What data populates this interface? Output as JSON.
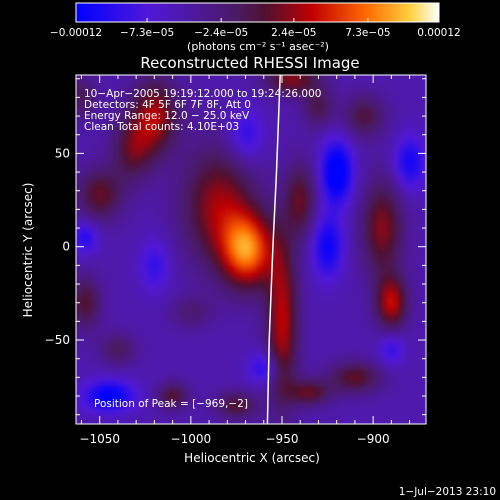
{
  "chart_data": {
    "type": "heatmap",
    "title": "Reconstructed RHESSI Image",
    "xlabel": "Heliocentric X (arcsec)",
    "ylabel": "Heliocentric Y (arcsec)",
    "xlim": [
      -1063,
      -871
    ],
    "ylim": [
      -95,
      92
    ],
    "x_ticks": [
      -1050,
      -1000,
      -950,
      -900
    ],
    "x_tick_labels": [
      "−1050",
      "−1000",
      "−950",
      "−900"
    ],
    "y_ticks": [
      -50,
      0,
      50
    ],
    "y_tick_labels": [
      "−50",
      "0",
      "50"
    ],
    "colorbar": {
      "label": "(photons cm⁻² s⁻¹ asec⁻²)",
      "range": [
        -0.00012,
        0.00012
      ],
      "ticks": [
        -0.00012,
        -7.3e-05,
        -2.4e-05,
        2.4e-05,
        7.3e-05,
        0.00012
      ],
      "tick_labels": [
        "−0.00012",
        "−7.3e−05",
        "−2.4e−05",
        "2.4e−05",
        "7.3e−05",
        "0.00012"
      ]
    },
    "info_lines": [
      "10−Apr−2005 19:19:12.000 to 19:24:26.000",
      "Detectors: 4F 5F 6F 7F 8F, Att 0",
      "Energy Range: 12.0 − 25.0 keV",
      "Clean     Total counts: 4.10E+03"
    ],
    "peak_text": "Position of Peak = [−969,−2]",
    "peak": {
      "x": -969,
      "y": -2
    },
    "limb_curve": [
      [
        -951,
        92
      ],
      [
        -953,
        40
      ],
      [
        -955,
        0
      ],
      [
        -957,
        -50
      ],
      [
        -958,
        -95
      ]
    ],
    "sources": [
      {
        "x": -969,
        "y": -2,
        "sx": 10,
        "sy": 14,
        "amp": 0.00012
      },
      {
        "x": -985,
        "y": 22,
        "sx": 14,
        "sy": 22,
        "amp": 7.5e-05
      },
      {
        "x": -1020,
        "y": 70,
        "sx": 9,
        "sy": 14,
        "amp": 8e-05
      },
      {
        "x": -1032,
        "y": 52,
        "sx": 8,
        "sy": 12,
        "amp": 5.5e-05
      },
      {
        "x": -1050,
        "y": 28,
        "sx": 9,
        "sy": 10,
        "amp": 6e-05
      },
      {
        "x": -1058,
        "y": -30,
        "sx": 6,
        "sy": 10,
        "amp": 5.5e-05
      },
      {
        "x": -1010,
        "y": -80,
        "sx": 6,
        "sy": 5,
        "amp": 5.5e-05
      },
      {
        "x": -1040,
        "y": -55,
        "sx": 7,
        "sy": 6,
        "amp": 4e-05
      },
      {
        "x": -950,
        "y": -40,
        "sx": 6,
        "sy": 30,
        "amp": 8.5e-05
      },
      {
        "x": -940,
        "y": 25,
        "sx": 6,
        "sy": 14,
        "amp": 6e-05
      },
      {
        "x": -930,
        "y": 75,
        "sx": 6,
        "sy": 8,
        "amp": 4.5e-05
      },
      {
        "x": -945,
        "y": 90,
        "sx": 10,
        "sy": 6,
        "amp": 7e-05
      },
      {
        "x": -905,
        "y": 70,
        "sx": 8,
        "sy": 8,
        "amp": 5e-05
      },
      {
        "x": -895,
        "y": 10,
        "sx": 8,
        "sy": 18,
        "amp": 7e-05
      },
      {
        "x": -890,
        "y": -30,
        "sx": 6,
        "sy": 10,
        "amp": 8.5e-05
      },
      {
        "x": -910,
        "y": -70,
        "sx": 10,
        "sy": 6,
        "amp": 6e-05
      },
      {
        "x": -935,
        "y": -78,
        "sx": 8,
        "sy": 5,
        "amp": 6e-05
      },
      {
        "x": -975,
        "y": -85,
        "sx": 8,
        "sy": 5,
        "amp": 5.5e-05
      },
      {
        "x": -1060,
        "y": 80,
        "sx": 6,
        "sy": 8,
        "amp": 4e-05
      },
      {
        "x": -1000,
        "y": -35,
        "sx": 8,
        "sy": 6,
        "amp": 3e-05
      },
      {
        "x": -920,
        "y": 40,
        "sx": 6,
        "sy": 12,
        "amp": -9e-05
      },
      {
        "x": -925,
        "y": 0,
        "sx": 6,
        "sy": 12,
        "amp": -6.5e-05
      },
      {
        "x": -1045,
        "y": -80,
        "sx": 10,
        "sy": 6,
        "amp": -7.5e-05
      },
      {
        "x": -880,
        "y": 45,
        "sx": 6,
        "sy": 10,
        "amp": -6e-05
      },
      {
        "x": -1058,
        "y": 5,
        "sx": 5,
        "sy": 6,
        "amp": -5e-05
      },
      {
        "x": -970,
        "y": 60,
        "sx": 7,
        "sy": 10,
        "amp": -4.5e-05
      },
      {
        "x": -960,
        "y": -65,
        "sx": 6,
        "sy": 6,
        "amp": -5e-05
      },
      {
        "x": -1020,
        "y": -10,
        "sx": 6,
        "sy": 10,
        "amp": -4e-05
      },
      {
        "x": -890,
        "y": -55,
        "sx": 5,
        "sy": 6,
        "amp": -4e-05
      }
    ],
    "background": -5e-05,
    "grid": false
  },
  "footer": {
    "timestamp": "1−Jul−2013 23:10"
  }
}
